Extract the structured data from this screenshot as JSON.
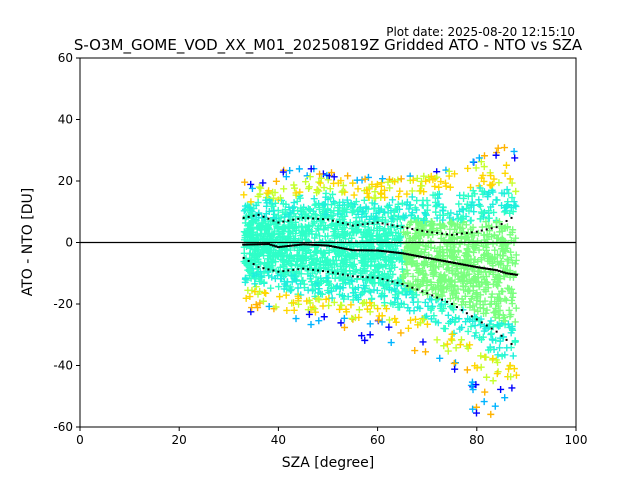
{
  "plot_date": "Plot date: 2025-08-20 12:15:10",
  "chart_data": {
    "type": "scatter",
    "title": "S-O3M_GOME_VOD_XX_M01_20250819Z Gridded ATO - NTO vs SZA",
    "xlabel": "SZA [degree]",
    "ylabel": "ATO - NTO [DU]",
    "xlim": [
      0,
      100
    ],
    "ylim": [
      -60,
      60
    ],
    "xticks": [
      0,
      20,
      40,
      60,
      80,
      100
    ],
    "yticks": [
      -60,
      -40,
      -20,
      0,
      20,
      40,
      60
    ],
    "grid": false,
    "legend": "none",
    "marker": "plus",
    "reference_line_y": 0,
    "colormap": [
      "#0000ff",
      "#00b4ff",
      "#1ef0dc",
      "#2effc8",
      "#7aff7e",
      "#c6ff2e",
      "#ffd700",
      "#ffb300"
    ],
    "point_cloud": {
      "x_range": [
        33,
        88
      ],
      "approx_envelope": [
        {
          "x": 34,
          "low": -24,
          "high": 20
        },
        {
          "x": 40,
          "low": -27,
          "high": 24
        },
        {
          "x": 45,
          "low": -30,
          "high": 25
        },
        {
          "x": 50,
          "low": -33,
          "high": 24
        },
        {
          "x": 55,
          "low": -34,
          "high": 22
        },
        {
          "x": 60,
          "low": -35,
          "high": 21
        },
        {
          "x": 65,
          "low": -38,
          "high": 22
        },
        {
          "x": 70,
          "low": -45,
          "high": 23
        },
        {
          "x": 75,
          "low": -52,
          "high": 24
        },
        {
          "x": 80,
          "low": -58,
          "high": 28
        },
        {
          "x": 85,
          "low": -60,
          "high": 33
        },
        {
          "x": 88,
          "low": -60,
          "high": 30
        }
      ]
    },
    "median_line": [
      {
        "x": 33,
        "y": -0.7
      },
      {
        "x": 38,
        "y": -0.5
      },
      {
        "x": 40,
        "y": -1.5
      },
      {
        "x": 45,
        "y": -0.6
      },
      {
        "x": 50,
        "y": -1.0
      },
      {
        "x": 55,
        "y": -2.5
      },
      {
        "x": 60,
        "y": -2.6
      },
      {
        "x": 65,
        "y": -3.5
      },
      {
        "x": 70,
        "y": -5.0
      },
      {
        "x": 75,
        "y": -6.5
      },
      {
        "x": 80,
        "y": -8.0
      },
      {
        "x": 84,
        "y": -9.0
      },
      {
        "x": 86,
        "y": -10.0
      },
      {
        "x": 88,
        "y": -10.5
      }
    ],
    "upper_band": [
      {
        "x": 33,
        "y": 8
      },
      {
        "x": 36,
        "y": 9
      },
      {
        "x": 40,
        "y": 6.5
      },
      {
        "x": 45,
        "y": 8
      },
      {
        "x": 50,
        "y": 7.5
      },
      {
        "x": 55,
        "y": 5.5
      },
      {
        "x": 60,
        "y": 6.5
      },
      {
        "x": 65,
        "y": 5
      },
      {
        "x": 70,
        "y": 3.5
      },
      {
        "x": 75,
        "y": 2.5
      },
      {
        "x": 80,
        "y": 3.5
      },
      {
        "x": 84,
        "y": 5
      },
      {
        "x": 87,
        "y": 8
      }
    ],
    "lower_band": [
      {
        "x": 33,
        "y": -5
      },
      {
        "x": 36,
        "y": -8
      },
      {
        "x": 40,
        "y": -9.5
      },
      {
        "x": 45,
        "y": -8.5
      },
      {
        "x": 50,
        "y": -9.5
      },
      {
        "x": 55,
        "y": -11
      },
      {
        "x": 60,
        "y": -11.5
      },
      {
        "x": 65,
        "y": -13.5
      },
      {
        "x": 70,
        "y": -16.5
      },
      {
        "x": 75,
        "y": -20
      },
      {
        "x": 80,
        "y": -25
      },
      {
        "x": 84,
        "y": -29
      },
      {
        "x": 87,
        "y": -33
      }
    ]
  }
}
